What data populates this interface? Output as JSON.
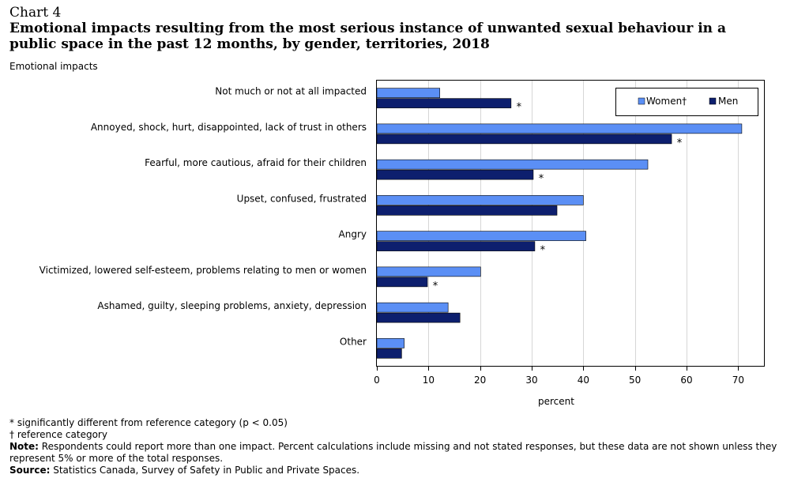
{
  "header": {
    "chart_number": "Chart 4",
    "title": "Emotional impacts resulting from the most serious instance of unwanted sexual behaviour in a public space in the past 12 months, by gender, territories, 2018"
  },
  "chart_data": {
    "type": "bar",
    "orientation": "horizontal",
    "categories": [
      "Not much or not at all impacted",
      "Annoyed, shock, hurt, disappointed, lack of trust in others",
      "Fearful, more cautious, afraid for their children",
      "Upset, confused, frustrated",
      "Angry",
      "Victimized, lowered self-esteem, problems relating to men or women",
      "Ashamed, guilty, sleeping problems, anxiety, depression",
      "Other"
    ],
    "series": [
      {
        "name": "Women†",
        "color": "#5b8ff5",
        "values": [
          12.2,
          70.7,
          52.5,
          40,
          40.5,
          20.1,
          13.8,
          5.3
        ],
        "flags": [
          "",
          "",
          "",
          "",
          "",
          "",
          "",
          ""
        ]
      },
      {
        "name": "Men",
        "color": "#0d1f6e",
        "values": [
          26,
          57.1,
          30.3,
          34.9,
          30.6,
          9.8,
          16.1,
          4.8
        ],
        "flags": [
          "*",
          "*",
          "*",
          "",
          "*",
          "*",
          "",
          ""
        ]
      }
    ],
    "xlabel": "percent",
    "ylabel": "Emotional impacts",
    "xlim": [
      0,
      75
    ],
    "xticks": [
      0,
      10,
      20,
      30,
      40,
      50,
      60,
      70
    ],
    "grid": true,
    "legend_position": "top-right"
  },
  "notes": {
    "significance": "* significantly different from reference category (p < 0.05)",
    "reference": "† reference category",
    "note_label": "Note:",
    "note_text": " Respondents could report more than one impact. Percent calculations include missing and not stated responses, but these data are not shown unless they represent 5% or more of the total responses.",
    "source_label": "Source:",
    "source_text": " Statistics Canada, Survey of Safety in Public and Private Spaces."
  }
}
